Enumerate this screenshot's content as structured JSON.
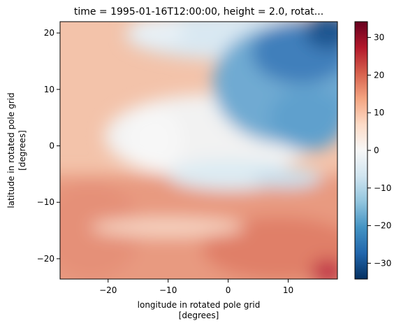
{
  "chart_data": {
    "type": "heatmap",
    "title": "time = 1995-01-16T12:00:00, height = 2.0, rotat...",
    "xlabel_line1": "longitude in rotated pole grid",
    "xlabel_line2": "[degrees]",
    "ylabel_line1": "latitude in rotated pole grid",
    "ylabel_line2": "[degrees]",
    "xlim": [
      -28,
      18.2
    ],
    "ylim": [
      -23.6,
      22
    ],
    "xticks": [
      -20,
      -10,
      0,
      10
    ],
    "xtick_labels": [
      "−20",
      "−10",
      "0",
      "10"
    ],
    "yticks": [
      -20,
      -10,
      0,
      10,
      20
    ],
    "ytick_labels": [
      "−20",
      "−10",
      "0",
      "10",
      "20"
    ],
    "colorbar": {
      "colormap": "RdBu_r",
      "vmin": -34.2,
      "vmax": 34.2,
      "ticks": [
        -30,
        -20,
        -10,
        0,
        10,
        20,
        30
      ],
      "tick_labels": [
        "−30",
        "−20",
        "−10",
        "0",
        "10",
        "20",
        "30"
      ]
    },
    "grid": false
  }
}
